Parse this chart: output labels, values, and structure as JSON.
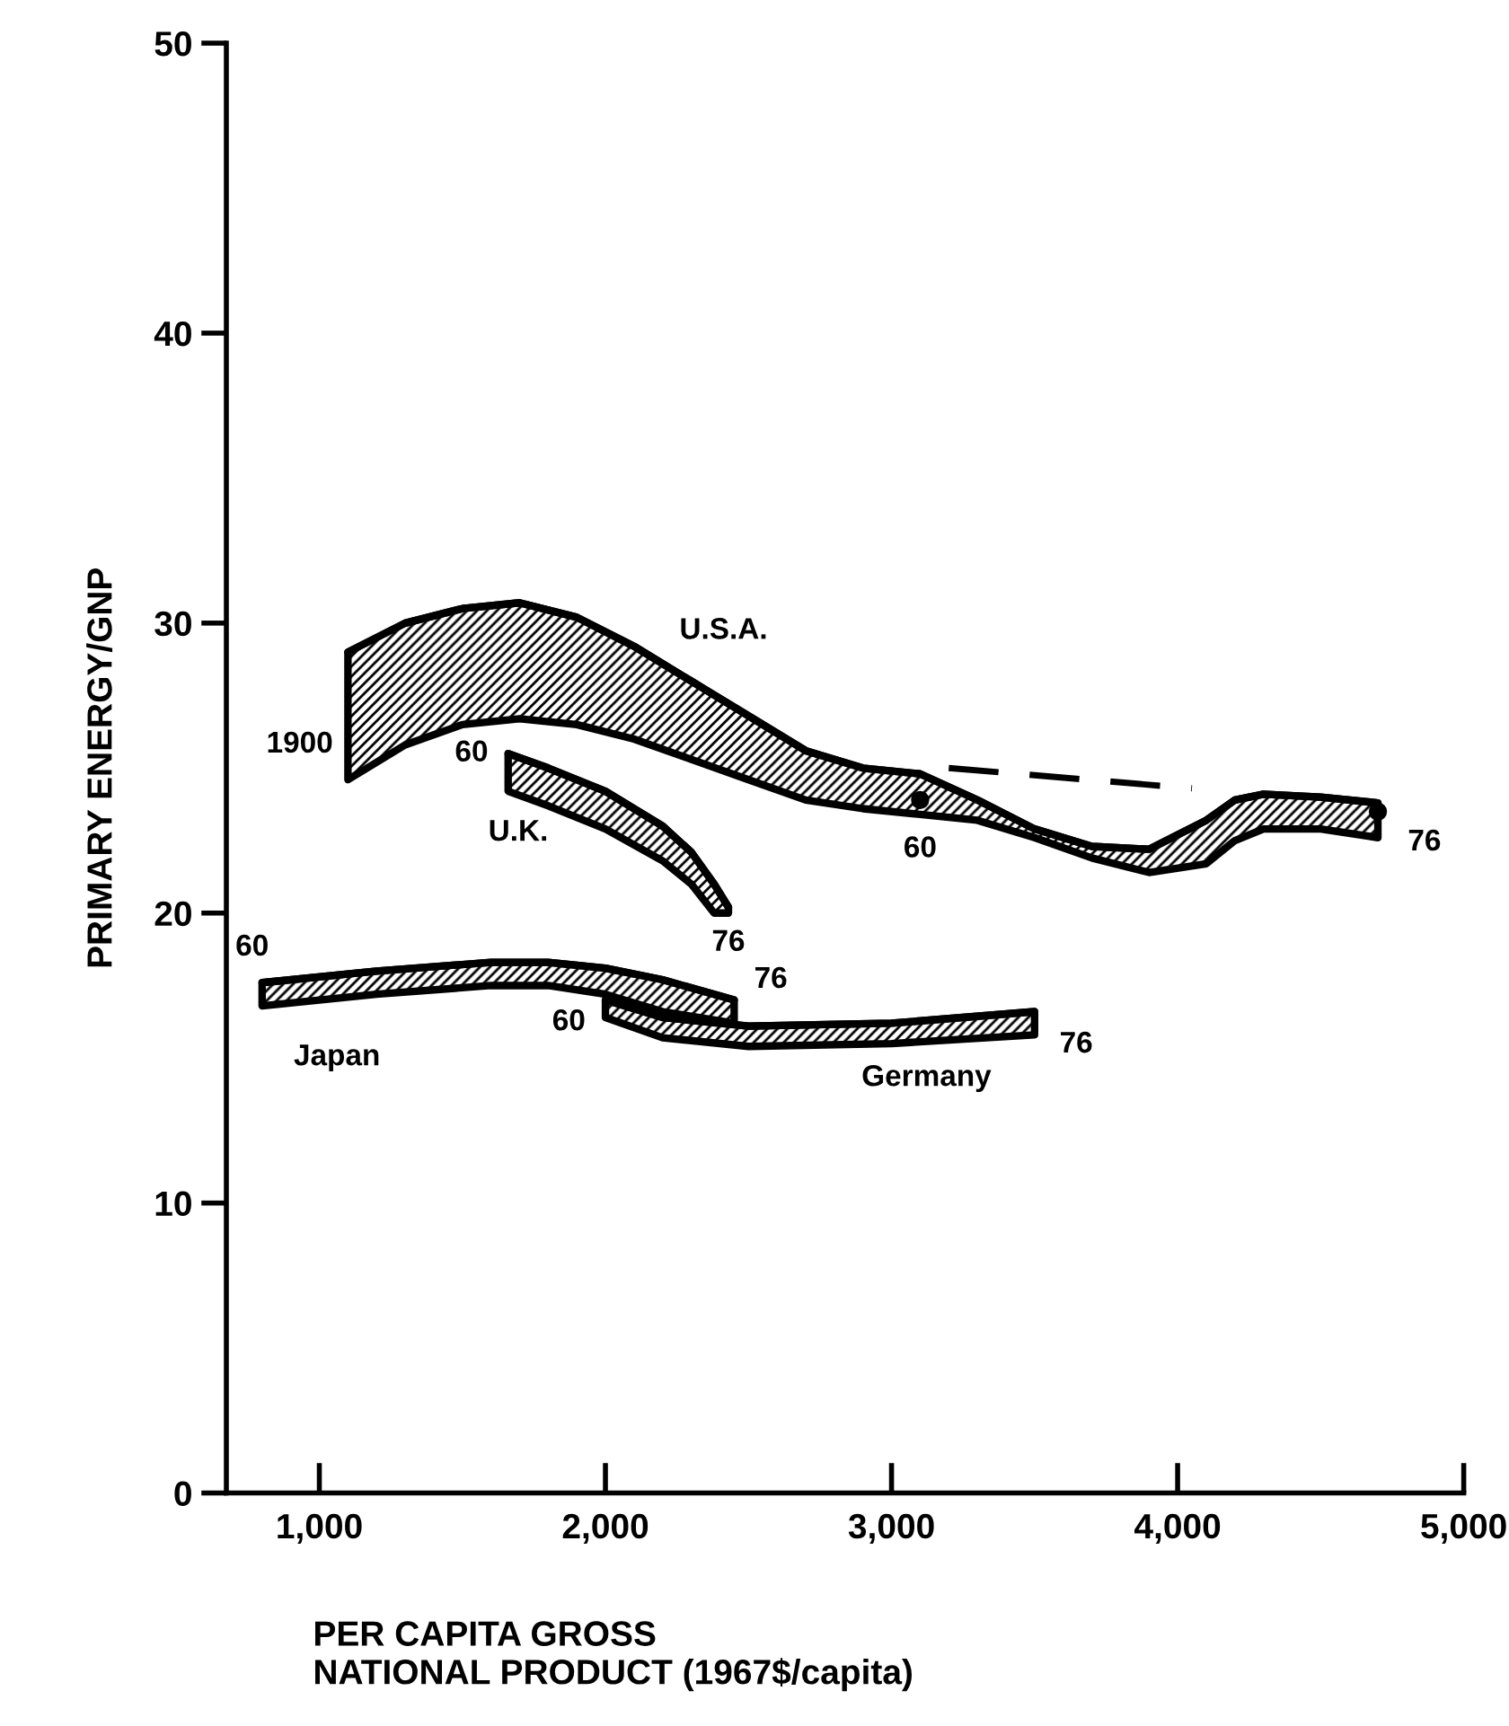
{
  "chart_data": {
    "type": "line",
    "xlabel": "PER CAPITA GROSS\nNATIONAL PRODUCT (1967$/capita)",
    "ylabel": "PRIMARY ENERGY/GNP",
    "xlim": [
      675,
      5000
    ],
    "ylim": [
      0,
      50
    ],
    "xticks": [
      {
        "value": 1000,
        "label": "1,000"
      },
      {
        "value": 2000,
        "label": "2,000"
      },
      {
        "value": 3000,
        "label": "3,000"
      },
      {
        "value": 4000,
        "label": "4,000"
      },
      {
        "value": 5000,
        "label": "5,000"
      }
    ],
    "yticks": [
      0,
      10,
      20,
      30,
      40,
      50
    ],
    "grid": false,
    "legend": false,
    "series": [
      {
        "name": "U.S.A.",
        "color": "#000000",
        "x": [
          1100,
          1300,
          1500,
          1700,
          1900,
          2100,
          2300,
          2500,
          2700,
          2900,
          3100,
          3300,
          3500,
          3700,
          3900,
          4100,
          4200,
          4300,
          4500,
          4700
        ],
        "values": [
          29.0,
          30.0,
          30.5,
          30.7,
          30.2,
          29.2,
          28.0,
          26.8,
          25.6,
          25.0,
          24.8,
          23.9,
          22.9,
          22.3,
          22.2,
          23.2,
          23.9,
          24.1,
          24.0,
          23.8
        ],
        "lower": [
          24.6,
          25.8,
          26.5,
          26.7,
          26.5,
          26.0,
          25.3,
          24.6,
          23.9,
          23.6,
          23.4,
          23.2,
          22.6,
          21.9,
          21.4,
          21.7,
          22.5,
          22.9,
          22.9,
          22.6
        ],
        "upper": [
          29.0,
          30.0,
          30.5,
          30.7,
          30.2,
          29.2,
          28.0,
          26.8,
          25.6,
          25.0,
          24.8,
          23.9,
          22.9,
          22.3,
          22.2,
          23.2,
          23.9,
          24.1,
          24.0,
          23.8
        ]
      },
      {
        "name": "U.K.",
        "color": "#000000",
        "x": [
          1660,
          1800,
          2000,
          2200,
          2300,
          2380,
          2430
        ],
        "values": [
          25.5,
          25.0,
          24.2,
          23.0,
          22.1,
          21.0,
          20.2
        ],
        "lower": [
          24.2,
          23.7,
          22.9,
          21.8,
          21.0,
          20.0,
          20.0
        ],
        "upper": [
          25.5,
          25.0,
          24.2,
          23.0,
          22.1,
          21.0,
          20.2
        ]
      },
      {
        "name": "Japan",
        "color": "#000000",
        "x": [
          800,
          1200,
          1600,
          1800,
          2000,
          2200,
          2450
        ],
        "values": [
          17.6,
          18.0,
          18.3,
          18.3,
          18.1,
          17.7,
          17.0
        ],
        "lower": [
          16.8,
          17.2,
          17.5,
          17.5,
          17.2,
          16.6,
          16.2
        ],
        "upper": [
          17.6,
          18.0,
          18.3,
          18.3,
          18.1,
          17.7,
          17.0
        ]
      },
      {
        "name": "Germany",
        "color": "#000000",
        "x": [
          2000,
          2200,
          2500,
          3000,
          3500
        ],
        "values": [
          17.0,
          16.4,
          16.1,
          16.2,
          16.6
        ],
        "lower": [
          16.4,
          15.7,
          15.4,
          15.5,
          15.8
        ],
        "upper": [
          17.0,
          16.4,
          16.1,
          16.2,
          16.6
        ]
      },
      {
        "color": "#000000",
        "line_style": "dashed",
        "x": [
          3200,
          4050
        ],
        "values": [
          25.0,
          24.3
        ]
      },
      {
        "type": "scatter",
        "color": "#000000",
        "marker": "circle",
        "x": [
          3100,
          4700
        ],
        "values": [
          23.9,
          23.5
        ]
      }
    ],
    "annotations": [
      {
        "text": "1900",
        "x": 1100,
        "y": 24.6
      },
      {
        "text": "60",
        "x": 3100,
        "y": 23.4
      },
      {
        "text": "76",
        "x": 4700,
        "y": 22.6
      },
      {
        "text": "60",
        "x": 1660,
        "y": 25.5
      },
      {
        "text": "76",
        "x": 2430,
        "y": 20.0
      },
      {
        "text": "60",
        "x": 800,
        "y": 17.6
      },
      {
        "text": "76",
        "x": 2450,
        "y": 17.0
      },
      {
        "text": "60",
        "x": 2000,
        "y": 16.4
      },
      {
        "text": "76",
        "x": 3500,
        "y": 15.8
      }
    ]
  }
}
